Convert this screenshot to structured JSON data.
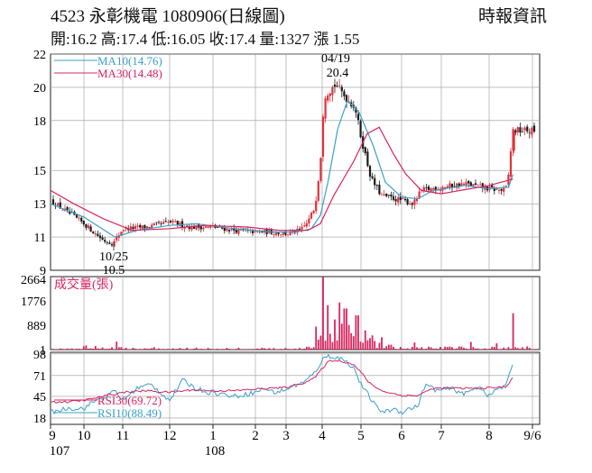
{
  "header": {
    "title": "4523  永彰機電 1080906(日線圖)",
    "source": "時報資訊",
    "quote": "開:16.2 高:17.4 低:16.05 收:17.4 量:1327 漲 1.55"
  },
  "colors": {
    "up": "#e0313b",
    "down": "#1a1a1a",
    "ma10": "#3aa0c8",
    "ma30": "#d8245f",
    "volume": "#d8245f",
    "rsi10": "#3aa0c8",
    "rsi30": "#d8245f",
    "grid": "#9a9a9a"
  },
  "chart_data": [
    {
      "type": "candlestick",
      "title": "",
      "y_ticks": [
        9,
        11,
        13,
        15,
        18,
        20,
        22
      ],
      "ylim": [
        9,
        22
      ],
      "legend": [
        {
          "key": "ma10",
          "label": "MA10(14.76)"
        },
        {
          "key": "ma30",
          "label": "MA30(14.48)"
        }
      ],
      "annotations": [
        {
          "date": "04/19",
          "value": "20.4",
          "kind": "high"
        },
        {
          "date": "10/25",
          "value": "10.5",
          "kind": "low"
        }
      ],
      "last": {
        "open": 16.2,
        "high": 17.4,
        "low": 16.05,
        "close": 17.4
      },
      "path": [
        {
          "m": 0,
          "p": 13.2
        },
        {
          "m": 0.5,
          "p": 12.5
        },
        {
          "m": 1.0,
          "p": 11.8
        },
        {
          "m": 1.5,
          "p": 10.8
        },
        {
          "m": 1.75,
          "p": 10.6
        },
        {
          "m": 2.0,
          "p": 11.5
        },
        {
          "m": 2.5,
          "p": 11.6
        },
        {
          "m": 3.0,
          "p": 11.9
        },
        {
          "m": 3.5,
          "p": 11.6
        },
        {
          "m": 4.0,
          "p": 11.6
        },
        {
          "m": 4.5,
          "p": 11.4
        },
        {
          "m": 5.0,
          "p": 11.3
        },
        {
          "m": 5.5,
          "p": 11.3
        },
        {
          "m": 6.0,
          "p": 11.2
        },
        {
          "m": 6.4,
          "p": 11.4
        },
        {
          "m": 6.6,
          "p": 11.9
        },
        {
          "m": 6.8,
          "p": 12.8
        },
        {
          "m": 6.95,
          "p": 15.5
        },
        {
          "m": 7.05,
          "p": 19.5
        },
        {
          "m": 7.35,
          "p": 20.2
        },
        {
          "m": 7.6,
          "p": 19.4
        },
        {
          "m": 7.85,
          "p": 18.8
        },
        {
          "m": 8.0,
          "p": 17.0
        },
        {
          "m": 8.25,
          "p": 14.5
        },
        {
          "m": 8.5,
          "p": 13.5
        },
        {
          "m": 9.0,
          "p": 13.2
        },
        {
          "m": 9.3,
          "p": 13.0
        },
        {
          "m": 9.5,
          "p": 13.8
        },
        {
          "m": 10.0,
          "p": 14.0
        },
        {
          "m": 10.5,
          "p": 14.2
        },
        {
          "m": 11.0,
          "p": 13.9
        },
        {
          "m": 11.3,
          "p": 13.8
        },
        {
          "m": 11.42,
          "p": 14.0
        },
        {
          "m": 11.5,
          "p": 16.2
        },
        {
          "m": 11.55,
          "p": 17.4
        }
      ],
      "ma10": [
        {
          "m": 0,
          "p": 13.0
        },
        {
          "m": 1.0,
          "p": 12.2
        },
        {
          "m": 1.8,
          "p": 11.0
        },
        {
          "m": 2.3,
          "p": 11.4
        },
        {
          "m": 3.0,
          "p": 11.7
        },
        {
          "m": 3.6,
          "p": 11.8
        },
        {
          "m": 4.5,
          "p": 11.5
        },
        {
          "m": 5.5,
          "p": 11.3
        },
        {
          "m": 6.3,
          "p": 11.3
        },
        {
          "m": 6.7,
          "p": 11.5
        },
        {
          "m": 6.95,
          "p": 12.3
        },
        {
          "m": 7.15,
          "p": 14.3
        },
        {
          "m": 7.4,
          "p": 17.5
        },
        {
          "m": 7.65,
          "p": 19.2
        },
        {
          "m": 7.95,
          "p": 18.5
        },
        {
          "m": 8.3,
          "p": 16.5
        },
        {
          "m": 8.6,
          "p": 14.3
        },
        {
          "m": 9.0,
          "p": 13.4
        },
        {
          "m": 9.4,
          "p": 13.3
        },
        {
          "m": 9.8,
          "p": 13.8
        },
        {
          "m": 10.5,
          "p": 14.1
        },
        {
          "m": 11.0,
          "p": 13.9
        },
        {
          "m": 11.45,
          "p": 14.0
        },
        {
          "m": 11.55,
          "p": 14.76
        }
      ],
      "ma30": [
        {
          "m": 0,
          "p": 13.8
        },
        {
          "m": 0.7,
          "p": 13.0
        },
        {
          "m": 1.5,
          "p": 12.1
        },
        {
          "m": 2.2,
          "p": 11.4
        },
        {
          "m": 3.0,
          "p": 11.5
        },
        {
          "m": 3.8,
          "p": 11.7
        },
        {
          "m": 4.8,
          "p": 11.6
        },
        {
          "m": 5.8,
          "p": 11.4
        },
        {
          "m": 6.6,
          "p": 11.4
        },
        {
          "m": 6.95,
          "p": 11.8
        },
        {
          "m": 7.3,
          "p": 13.5
        },
        {
          "m": 7.8,
          "p": 15.5
        },
        {
          "m": 8.15,
          "p": 17.2
        },
        {
          "m": 8.45,
          "p": 17.6
        },
        {
          "m": 8.8,
          "p": 16.0
        },
        {
          "m": 9.1,
          "p": 14.8
        },
        {
          "m": 9.5,
          "p": 13.8
        },
        {
          "m": 10.0,
          "p": 13.6
        },
        {
          "m": 10.6,
          "p": 13.9
        },
        {
          "m": 11.0,
          "p": 14.1
        },
        {
          "m": 11.55,
          "p": 14.48
        }
      ]
    },
    {
      "type": "bar",
      "title": "成交量(張)",
      "y_ticks": [
        1,
        889,
        1776,
        2664
      ],
      "ylim": [
        1,
        2664
      ],
      "base": [
        {
          "m": 0,
          "v": 40
        },
        {
          "m": 1.5,
          "v": 120
        },
        {
          "m": 2.0,
          "v": 60
        },
        {
          "m": 4.0,
          "v": 50
        },
        {
          "m": 6.0,
          "v": 40
        },
        {
          "m": 6.7,
          "v": 90
        },
        {
          "m": 6.9,
          "v": 250
        },
        {
          "m": 7.0,
          "v": 600
        },
        {
          "m": 7.5,
          "v": 700
        },
        {
          "m": 8.0,
          "v": 400
        },
        {
          "m": 8.5,
          "v": 170
        },
        {
          "m": 9.0,
          "v": 60
        },
        {
          "m": 10.0,
          "v": 90
        },
        {
          "m": 11.4,
          "v": 60
        },
        {
          "m": 11.55,
          "v": 80
        }
      ],
      "spikes": [
        {
          "m": 1.85,
          "v": 290
        },
        {
          "m": 6.85,
          "v": 840
        },
        {
          "m": 7.05,
          "v": 2664
        },
        {
          "m": 7.15,
          "v": 1620
        },
        {
          "m": 7.3,
          "v": 1100
        },
        {
          "m": 7.45,
          "v": 1720
        },
        {
          "m": 7.6,
          "v": 1500
        },
        {
          "m": 7.75,
          "v": 600
        },
        {
          "m": 7.9,
          "v": 1250
        },
        {
          "m": 8.1,
          "v": 700
        },
        {
          "m": 8.3,
          "v": 520
        },
        {
          "m": 8.5,
          "v": 450
        },
        {
          "m": 9.35,
          "v": 260
        },
        {
          "m": 10.6,
          "v": 280
        },
        {
          "m": 11.2,
          "v": 230
        },
        {
          "m": 11.55,
          "v": 1327
        }
      ]
    },
    {
      "type": "line",
      "title": "",
      "y_ticks": [
        18,
        45,
        71,
        98
      ],
      "ylim": [
        10,
        100
      ],
      "legend": [
        {
          "key": "rsi30",
          "label": "RSI30(69.72)"
        },
        {
          "key": "rsi10",
          "label": "RSI10(88.49)"
        }
      ],
      "rsi10": [
        {
          "m": 0,
          "p": 25
        },
        {
          "m": 0.5,
          "p": 30
        },
        {
          "m": 1.0,
          "p": 30
        },
        {
          "m": 1.3,
          "p": 40
        },
        {
          "m": 1.6,
          "p": 45
        },
        {
          "m": 1.8,
          "p": 52
        },
        {
          "m": 2.0,
          "p": 40
        },
        {
          "m": 2.3,
          "p": 55
        },
        {
          "m": 2.6,
          "p": 60
        },
        {
          "m": 2.8,
          "p": 50
        },
        {
          "m": 3.0,
          "p": 40
        },
        {
          "m": 3.3,
          "p": 65
        },
        {
          "m": 3.6,
          "p": 55
        },
        {
          "m": 3.9,
          "p": 50
        },
        {
          "m": 4.2,
          "p": 48
        },
        {
          "m": 4.5,
          "p": 45
        },
        {
          "m": 5.0,
          "p": 50
        },
        {
          "m": 5.3,
          "p": 55
        },
        {
          "m": 5.6,
          "p": 50
        },
        {
          "m": 5.9,
          "p": 52
        },
        {
          "m": 6.2,
          "p": 58
        },
        {
          "m": 6.5,
          "p": 62
        },
        {
          "m": 6.8,
          "p": 75
        },
        {
          "m": 7.0,
          "p": 90
        },
        {
          "m": 7.15,
          "p": 96
        },
        {
          "m": 7.5,
          "p": 92
        },
        {
          "m": 7.8,
          "p": 82
        },
        {
          "m": 8.0,
          "p": 60
        },
        {
          "m": 8.2,
          "p": 45
        },
        {
          "m": 8.4,
          "p": 30
        },
        {
          "m": 8.6,
          "p": 25
        },
        {
          "m": 8.8,
          "p": 30
        },
        {
          "m": 9.0,
          "p": 25
        },
        {
          "m": 9.2,
          "p": 30
        },
        {
          "m": 9.4,
          "p": 32
        },
        {
          "m": 9.6,
          "p": 60
        },
        {
          "m": 9.9,
          "p": 52
        },
        {
          "m": 10.2,
          "p": 55
        },
        {
          "m": 10.5,
          "p": 48
        },
        {
          "m": 10.8,
          "p": 58
        },
        {
          "m": 11.0,
          "p": 45
        },
        {
          "m": 11.2,
          "p": 55
        },
        {
          "m": 11.4,
          "p": 58
        },
        {
          "m": 11.55,
          "p": 88.49
        }
      ],
      "rsi30": [
        {
          "m": 0,
          "p": 38
        },
        {
          "m": 0.5,
          "p": 38
        },
        {
          "m": 1.0,
          "p": 40
        },
        {
          "m": 1.5,
          "p": 45
        },
        {
          "m": 2.0,
          "p": 50
        },
        {
          "m": 2.5,
          "p": 52
        },
        {
          "m": 3.0,
          "p": 50
        },
        {
          "m": 3.5,
          "p": 53
        },
        {
          "m": 4.0,
          "p": 52
        },
        {
          "m": 4.5,
          "p": 52
        },
        {
          "m": 5.0,
          "p": 54
        },
        {
          "m": 5.5,
          "p": 55
        },
        {
          "m": 6.0,
          "p": 56
        },
        {
          "m": 6.5,
          "p": 62
        },
        {
          "m": 6.8,
          "p": 68
        },
        {
          "m": 7.0,
          "p": 80
        },
        {
          "m": 7.2,
          "p": 90
        },
        {
          "m": 7.5,
          "p": 89
        },
        {
          "m": 7.8,
          "p": 85
        },
        {
          "m": 8.0,
          "p": 75
        },
        {
          "m": 8.2,
          "p": 62
        },
        {
          "m": 8.5,
          "p": 52
        },
        {
          "m": 9.0,
          "p": 46
        },
        {
          "m": 9.4,
          "p": 46
        },
        {
          "m": 9.8,
          "p": 55
        },
        {
          "m": 10.3,
          "p": 55
        },
        {
          "m": 10.8,
          "p": 55
        },
        {
          "m": 11.2,
          "p": 56
        },
        {
          "m": 11.4,
          "p": 57
        },
        {
          "m": 11.55,
          "p": 69.72
        }
      ]
    }
  ],
  "x_axis": {
    "labels": [
      "9",
      "10",
      "11",
      "12",
      "1",
      "2",
      "3",
      "4",
      "5",
      "6",
      "7",
      "8",
      "9/6"
    ],
    "years": [
      {
        "m": 0,
        "label": "107"
      },
      {
        "m": 4,
        "label": "108"
      }
    ]
  }
}
